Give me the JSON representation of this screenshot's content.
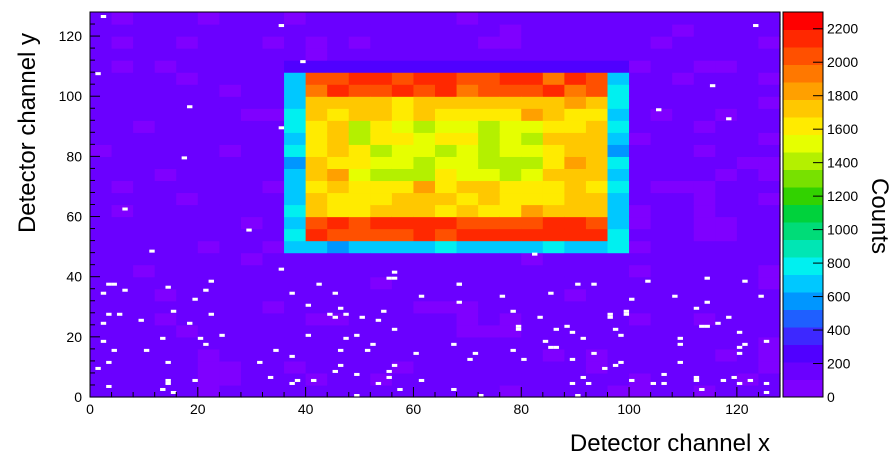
{
  "chart_data": {
    "type": "heatmap",
    "title": "",
    "xlabel": "Detector channel x",
    "ylabel": "Detector channel y",
    "zlabel": "Counts",
    "xlim": [
      0,
      128
    ],
    "ylim": [
      0,
      128
    ],
    "zlim": [
      0,
      2300
    ],
    "x_ticks": [
      0,
      20,
      40,
      60,
      80,
      100,
      120
    ],
    "y_ticks": [
      0,
      20,
      40,
      60,
      80,
      100,
      120
    ],
    "z_ticks": [
      0,
      200,
      400,
      600,
      800,
      1000,
      1200,
      1400,
      1600,
      1800,
      2000,
      2200
    ],
    "background_counts": 100,
    "bright_region": {
      "x_range": [
        38,
        98
      ],
      "y_range": [
        49,
        109
      ],
      "typical_counts": 1700,
      "center_counts": 1500,
      "top_band_counts": 2050,
      "bottom_band_counts": 2100
    },
    "colors": {
      "palette": [
        "#7f00ff",
        "#6a00ff",
        "#5000ff",
        "#3d28ff",
        "#1f5fff",
        "#0096ff",
        "#00c8ff",
        "#00f0f0",
        "#00e6b4",
        "#00dc78",
        "#00d23c",
        "#32d200",
        "#78e100",
        "#b4f000",
        "#e6ff00",
        "#ffeb00",
        "#ffc800",
        "#ffa000",
        "#ff7800",
        "#ff5000",
        "#ff2800",
        "#ff0000"
      ]
    }
  }
}
